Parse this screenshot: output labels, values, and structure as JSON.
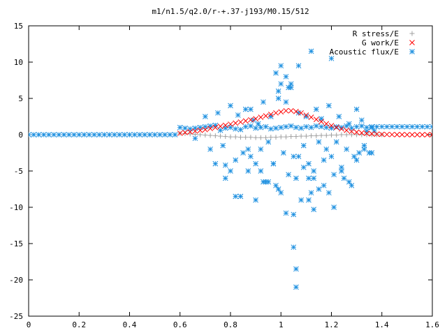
{
  "chart_data": {
    "type": "scatter",
    "title": "m1/n1.5/q2.0/r-+.37-j193/M0.15/512",
    "xlabel": "",
    "ylabel": "",
    "xlim": [
      0,
      1.6
    ],
    "ylim": [
      -25,
      15
    ],
    "xticks": [
      "0",
      "0.2",
      "0.4",
      "0.6",
      "0.8",
      "1",
      "1.2",
      "1.4",
      "1.6"
    ],
    "yticks": [
      "15",
      "10",
      "5",
      "0",
      "-5",
      "-10",
      "-15",
      "-20",
      "-25"
    ],
    "grid": false,
    "legend_position": "top-right",
    "series": [
      {
        "name": "R stress/E",
        "marker": "plus",
        "color": "#a0a0a0",
        "x": [
          0.6,
          0.62,
          0.64,
          0.66,
          0.68,
          0.7,
          0.72,
          0.74,
          0.76,
          0.78,
          0.8,
          0.82,
          0.84,
          0.86,
          0.88,
          0.9,
          0.92,
          0.94,
          0.96,
          0.98,
          1.0,
          1.02,
          1.04,
          1.06,
          1.08,
          1.1,
          1.12,
          1.14,
          1.16,
          1.18,
          1.2,
          1.22,
          1.24,
          1.26,
          1.28,
          1.3,
          1.32,
          1.34,
          1.36,
          1.38,
          1.4
        ],
        "y": [
          0.2,
          0.15,
          0.1,
          0.05,
          0.0,
          -0.05,
          -0.1,
          -0.15,
          -0.2,
          -0.25,
          -0.3,
          -0.3,
          -0.35,
          -0.35,
          -0.35,
          -0.4,
          -0.4,
          -0.4,
          -0.35,
          -0.35,
          -0.3,
          -0.3,
          -0.25,
          -0.25,
          -0.2,
          -0.2,
          -0.15,
          -0.15,
          -0.1,
          -0.1,
          -0.05,
          -0.05,
          0.0,
          0.0,
          0.0,
          0.0,
          0.0,
          0.0,
          0.0,
          0.0,
          0.0
        ]
      },
      {
        "name": "G work/E",
        "marker": "cross",
        "color": "#ff0000",
        "x": [
          0.6,
          0.62,
          0.64,
          0.66,
          0.68,
          0.7,
          0.72,
          0.74,
          0.76,
          0.78,
          0.8,
          0.82,
          0.84,
          0.86,
          0.88,
          0.9,
          0.92,
          0.94,
          0.96,
          0.98,
          1.0,
          1.02,
          1.04,
          1.06,
          1.08,
          1.1,
          1.12,
          1.14,
          1.16,
          1.18,
          1.2,
          1.22,
          1.24,
          1.26,
          1.28,
          1.3,
          1.32,
          1.34,
          1.36,
          1.38,
          1.4,
          1.42,
          1.44,
          1.46,
          1.48,
          1.5,
          1.52,
          1.54,
          1.56,
          1.58,
          1.6
        ],
        "y": [
          0.2,
          0.3,
          0.4,
          0.5,
          0.6,
          0.7,
          0.85,
          1.0,
          1.15,
          1.3,
          1.45,
          1.6,
          1.75,
          1.9,
          2.05,
          2.2,
          2.4,
          2.6,
          2.8,
          3.0,
          3.15,
          3.3,
          3.3,
          3.2,
          3.0,
          2.7,
          2.4,
          2.1,
          1.8,
          1.5,
          1.25,
          1.0,
          0.8,
          0.6,
          0.45,
          0.35,
          0.25,
          0.18,
          0.12,
          0.08,
          0.05,
          0.03,
          0.02,
          0.01,
          0.01,
          0.0,
          0.0,
          0.0,
          0.0,
          0.0,
          0.0
        ]
      },
      {
        "name": "Acoustic flux/E",
        "marker": "star",
        "color": "#1e90e0",
        "x": [
          0.0,
          0.02,
          0.04,
          0.06,
          0.08,
          0.1,
          0.12,
          0.14,
          0.16,
          0.18,
          0.2,
          0.22,
          0.24,
          0.26,
          0.28,
          0.3,
          0.32,
          0.34,
          0.36,
          0.38,
          0.4,
          0.42,
          0.44,
          0.46,
          0.48,
          0.5,
          0.52,
          0.54,
          0.56,
          0.58,
          0.6,
          0.62,
          0.64,
          0.66,
          0.68,
          0.7,
          0.72,
          0.74,
          0.76,
          0.78,
          0.8,
          0.82,
          0.84,
          0.86,
          0.88,
          0.9,
          0.92,
          0.94,
          0.96,
          0.98,
          1.0,
          1.02,
          1.04,
          1.06,
          1.08,
          1.1,
          1.12,
          1.14,
          1.16,
          1.18,
          1.2,
          1.22,
          1.24,
          1.26,
          1.28,
          1.3,
          1.32,
          1.34,
          1.36,
          1.38,
          1.4,
          1.42,
          1.44,
          1.46,
          1.48,
          1.5,
          1.52,
          1.54,
          1.56,
          1.58,
          1.6,
          0.66,
          0.7,
          0.72,
          0.75,
          0.77,
          0.78,
          0.8,
          0.82,
          0.83,
          0.85,
          0.86,
          0.87,
          0.88,
          0.89,
          0.9,
          0.91,
          0.92,
          0.93,
          0.94,
          0.95,
          0.96,
          0.97,
          0.98,
          0.99,
          1.0,
          1.01,
          1.02,
          1.03,
          1.04,
          1.05,
          1.06,
          1.07,
          1.08,
          1.09,
          1.1,
          1.11,
          1.12,
          1.13,
          1.14,
          1.15,
          1.16,
          1.17,
          1.18,
          1.19,
          1.2,
          1.21,
          1.22,
          1.23,
          1.24,
          1.25,
          1.26,
          1.27,
          1.28,
          1.29,
          1.3,
          1.31,
          1.32,
          1.33,
          1.34,
          1.35,
          1.36,
          1.37,
          0.74,
          0.78,
          0.8,
          0.84,
          0.87,
          0.9,
          0.92,
          0.95,
          0.97,
          0.99,
          1.0,
          1.03,
          1.05,
          1.07,
          1.09,
          1.11,
          1.13,
          1.15,
          1.17,
          1.19,
          1.21,
          1.24,
          1.27,
          1.3,
          1.33,
          1.36,
          0.98,
          1.0,
          1.02,
          1.05,
          1.06,
          1.06,
          1.12,
          1.2,
          0.99,
          1.02,
          1.07,
          0.82,
          0.88,
          1.11,
          1.13,
          0.93,
          1.04
        ],
        "y": [
          0,
          0,
          0,
          0,
          0,
          0,
          0,
          0,
          0,
          0,
          0,
          0,
          0,
          0,
          0,
          0,
          0,
          0,
          0,
          0,
          0,
          0,
          0,
          0,
          0,
          0,
          0,
          0,
          0,
          0,
          1.0,
          0.9,
          0.8,
          0.9,
          1.0,
          1.1,
          1.2,
          1.3,
          0.6,
          0.9,
          1.0,
          0.8,
          0.7,
          1.1,
          1.2,
          0.9,
          1.0,
          1.1,
          0.8,
          0.9,
          1.0,
          1.1,
          1.2,
          1.0,
          0.9,
          1.1,
          1.0,
          1.2,
          1.1,
          1.0,
          0.9,
          1.1,
          1.0,
          1.2,
          0.9,
          1.1,
          1.2,
          1.0,
          1.1,
          1.1,
          1.1,
          1.1,
          1.1,
          1.1,
          1.1,
          1.1,
          1.1,
          1.1,
          1.1,
          1.1,
          1.1,
          -0.5,
          2.5,
          -2.0,
          3.0,
          -1.5,
          -4.2,
          4.0,
          -3.5,
          2.7,
          -2.5,
          3.5,
          -5.0,
          -3.0,
          2.0,
          -4.0,
          1.5,
          -2.0,
          4.5,
          -6.5,
          -1.0,
          2.5,
          -4.0,
          -7.0,
          5.0,
          -8.0,
          -2.5,
          4.5,
          -5.5,
          7.0,
          -3.0,
          -6.0,
          3.0,
          -9.0,
          -1.5,
          2.5,
          -4.0,
          -8.0,
          -6.0,
          3.5,
          -1.0,
          2.2,
          -7.0,
          -2.0,
          4.0,
          -3.0,
          -5.5,
          -1.0,
          2.5,
          -4.5,
          -6.0,
          -2.0,
          1.5,
          -7.0,
          -3.0,
          3.5,
          -2.5,
          2.0,
          -1.5,
          0.5,
          -2.5,
          1.0,
          0.5,
          -4.0,
          -6.0,
          -5.0,
          -8.5,
          -2.0,
          -9.0,
          -5.0,
          -6.5,
          -4.0,
          -7.5,
          9.5,
          6.5,
          -11.0,
          -3.0,
          -4.5,
          -6.0,
          -5.0,
          -7.5,
          -3.5,
          -8.0,
          -10.0,
          -5.0,
          -6.5,
          -3.5,
          -2.0,
          -2.5,
          8.5,
          7.0,
          -10.8,
          -15.5,
          -18.5,
          -21.0,
          11.5,
          10.5,
          6.0,
          8.0,
          9.5,
          -8.5,
          3.5,
          -9.0,
          -10.3,
          -6.5,
          6.5
        ]
      }
    ]
  }
}
